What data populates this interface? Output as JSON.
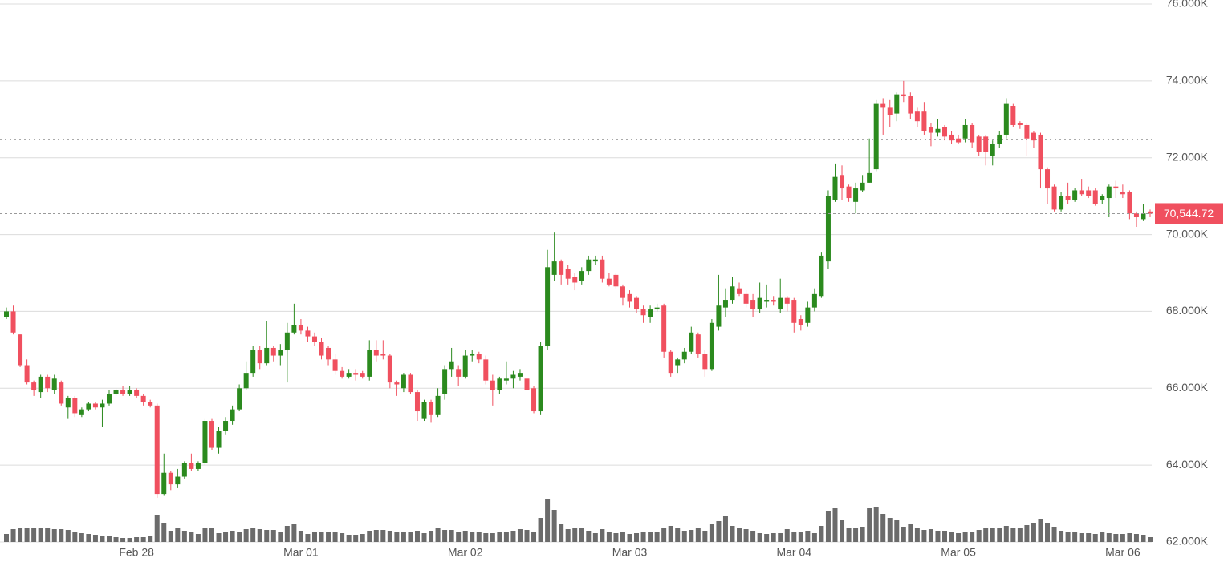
{
  "chart_data": {
    "type": "candlestick",
    "categories": [
      null,
      null,
      null,
      null,
      null,
      null,
      null,
      null,
      null,
      null,
      null,
      null,
      null,
      null,
      null,
      null,
      null,
      null,
      null,
      "Feb 28",
      null,
      null,
      null,
      null,
      null,
      null,
      null,
      null,
      null,
      null,
      null,
      null,
      null,
      null,
      null,
      null,
      null,
      null,
      null,
      null,
      null,
      null,
      null,
      "Mar 01",
      null,
      null,
      null,
      null,
      null,
      null,
      null,
      null,
      null,
      null,
      null,
      null,
      null,
      null,
      null,
      null,
      null,
      null,
      null,
      null,
      null,
      null,
      null,
      "Mar 02",
      null,
      null,
      null,
      null,
      null,
      null,
      null,
      null,
      null,
      null,
      null,
      null,
      null,
      null,
      null,
      null,
      null,
      null,
      null,
      null,
      null,
      null,
      null,
      "Mar 03",
      null,
      null,
      null,
      null,
      null,
      null,
      null,
      null,
      null,
      null,
      null,
      null,
      null,
      null,
      null,
      null,
      null,
      null,
      null,
      null,
      null,
      null,
      null,
      "Mar 04",
      null,
      null,
      null,
      null,
      null,
      null,
      null,
      null,
      null,
      null,
      null,
      null,
      null,
      null,
      null,
      null,
      null,
      null,
      null,
      null,
      null,
      null,
      null,
      "Mar 05",
      null,
      null,
      null,
      null,
      null,
      null,
      null,
      null,
      null,
      null,
      null,
      null,
      null,
      null,
      null,
      null,
      null,
      null,
      null,
      null,
      null,
      null,
      null,
      "Mar 06",
      null,
      null,
      null,
      null
    ],
    "open": [
      67850,
      68000,
      67400,
      66600,
      66150,
      65900,
      66300,
      65950,
      66150,
      65500,
      65750,
      65300,
      65450,
      65600,
      65500,
      65600,
      65850,
      65950,
      65850,
      65950,
      65800,
      65650,
      65550,
      63250,
      63800,
      63500,
      63700,
      64050,
      63900,
      64050,
      65150,
      64450,
      64900,
      65150,
      65450,
      66000,
      66400,
      67000,
      66650,
      67050,
      66850,
      67000,
      67450,
      67650,
      67500,
      67350,
      67200,
      67050,
      66750,
      66450,
      66300,
      66400,
      66400,
      66300,
      67000,
      66900,
      66850,
      66150,
      66000,
      66350,
      65900,
      65200,
      65650,
      65300,
      65850,
      66500,
      66500,
      66300,
      66850,
      66900,
      66750,
      66200,
      65950,
      66200,
      66250,
      66300,
      66250,
      66000,
      65400,
      67100,
      68950,
      69300,
      69100,
      68900,
      68800,
      69050,
      69300,
      69350,
      68850,
      68950,
      68650,
      68450,
      68350,
      68050,
      67850,
      68050,
      68150,
      66950,
      66600,
      66750,
      66950,
      67400,
      66900,
      66500,
      67600,
      68100,
      68300,
      68600,
      68450,
      68300,
      68050,
      68250,
      68300,
      68050,
      68350,
      68300,
      67800,
      67700,
      68100,
      68400,
      69300,
      70900,
      71550,
      71250,
      70850,
      71150,
      71350,
      71700,
      73400,
      73300,
      73150,
      73650,
      73600,
      73200,
      73200,
      72800,
      72650,
      72800,
      72600,
      72500,
      72500,
      72850,
      72550,
      72550,
      72050,
      72350,
      72600,
      73350,
      72900,
      72850,
      72650,
      72600,
      71700,
      71250,
      70650,
      71000,
      70900,
      71150,
      71150,
      71150,
      70900,
      70950,
      71250,
      71100,
      71100,
      70550,
      70400,
      70600
    ],
    "high": [
      68100,
      68150,
      67400,
      66750,
      66200,
      66350,
      66350,
      66350,
      66200,
      65800,
      65800,
      65500,
      65650,
      65650,
      65700,
      65950,
      66000,
      66050,
      66050,
      66000,
      65850,
      65700,
      65600,
      64300,
      63850,
      63900,
      64100,
      64300,
      64100,
      65200,
      65200,
      65000,
      65250,
      65550,
      66100,
      66700,
      67100,
      67100,
      67750,
      67100,
      67150,
      67700,
      68200,
      67800,
      67600,
      67450,
      67300,
      67100,
      66900,
      66550,
      66500,
      66500,
      66450,
      67250,
      67250,
      67250,
      66900,
      66200,
      66400,
      66400,
      65950,
      65700,
      65700,
      66000,
      66600,
      67050,
      66600,
      67000,
      67000,
      66950,
      66850,
      66350,
      66300,
      66700,
      66450,
      66500,
      66300,
      66050,
      67200,
      69600,
      70050,
      69350,
      69200,
      69000,
      69150,
      69450,
      69450,
      69450,
      69000,
      69000,
      68700,
      68550,
      68400,
      68150,
      68150,
      68200,
      68200,
      67000,
      66800,
      67050,
      67600,
      67450,
      67000,
      67800,
      68950,
      68600,
      68900,
      68750,
      68550,
      68450,
      68750,
      68700,
      68400,
      68850,
      68400,
      68350,
      67900,
      68250,
      68600,
      69550,
      71150,
      71850,
      71800,
      71300,
      71350,
      71550,
      72500,
      73500,
      73550,
      73500,
      73700,
      74000,
      73700,
      73300,
      73450,
      72900,
      73000,
      72850,
      72700,
      72600,
      73000,
      72900,
      72600,
      72600,
      72450,
      72700,
      73550,
      73400,
      72950,
      72900,
      72700,
      72650,
      71750,
      71300,
      71100,
      71350,
      71200,
      71450,
      71250,
      71200,
      71050,
      71300,
      71400,
      71300,
      71150,
      70600,
      70800,
      70650
    ],
    "low": [
      67800,
      67400,
      66550,
      66100,
      65800,
      65750,
      65900,
      65850,
      65550,
      65200,
      65250,
      65250,
      65400,
      65450,
      65000,
      65550,
      65800,
      65800,
      65800,
      65750,
      65550,
      65500,
      63150,
      63200,
      63350,
      63400,
      63650,
      63850,
      63850,
      64000,
      64400,
      64300,
      64800,
      65050,
      65400,
      65950,
      66300,
      66500,
      66600,
      66700,
      66600,
      66150,
      67400,
      67400,
      67200,
      67100,
      66750,
      66600,
      66350,
      66250,
      66250,
      66200,
      66250,
      66200,
      66700,
      66750,
      66000,
      65800,
      65900,
      65850,
      65150,
      65150,
      65100,
      65250,
      65700,
      66300,
      66050,
      66250,
      66700,
      66650,
      66100,
      65550,
      65850,
      66100,
      66000,
      66200,
      65900,
      65350,
      65300,
      67000,
      68800,
      68700,
      68700,
      68550,
      68700,
      68950,
      69200,
      68750,
      68650,
      68600,
      68150,
      68100,
      67950,
      67700,
      67700,
      68000,
      66800,
      66300,
      66400,
      66650,
      66900,
      66800,
      66300,
      66450,
      67500,
      67850,
      68200,
      68400,
      68100,
      67850,
      67950,
      68100,
      68150,
      67950,
      68000,
      67450,
      67500,
      67600,
      68000,
      68350,
      69100,
      70850,
      70900,
      70850,
      70550,
      71100,
      71350,
      71650,
      72600,
      72800,
      72950,
      73450,
      73000,
      72800,
      72600,
      72300,
      72550,
      72450,
      72350,
      72350,
      72400,
      72250,
      72050,
      71800,
      71800,
      72250,
      72500,
      72800,
      72750,
      72050,
      72250,
      71200,
      70800,
      70600,
      70600,
      70800,
      70850,
      71000,
      70950,
      70750,
      70800,
      70450,
      70950,
      70950,
      70400,
      70200,
      70350,
      70450
    ],
    "close": [
      68000,
      67450,
      66600,
      66150,
      65950,
      66300,
      66000,
      66250,
      65600,
      65750,
      65350,
      65450,
      65600,
      65500,
      65600,
      65850,
      65950,
      65850,
      65950,
      65800,
      65650,
      65550,
      63250,
      63800,
      63500,
      63700,
      64050,
      63900,
      64050,
      65150,
      64450,
      64900,
      65150,
      65450,
      66000,
      66400,
      67000,
      66650,
      67050,
      66850,
      67000,
      67450,
      67650,
      67500,
      67350,
      67200,
      66850,
      66750,
      66450,
      66300,
      66400,
      66350,
      66300,
      67000,
      66850,
      66850,
      66150,
      66100,
      66350,
      65900,
      65400,
      65650,
      65300,
      65800,
      66500,
      66700,
      66300,
      66850,
      66900,
      66750,
      66200,
      65950,
      66250,
      66250,
      66350,
      66400,
      65950,
      65400,
      67100,
      69150,
      69300,
      68950,
      68850,
      68750,
      69050,
      69350,
      69350,
      68850,
      68700,
      68650,
      68350,
      68250,
      68050,
      67900,
      68050,
      68100,
      66950,
      66400,
      66750,
      66950,
      67450,
      66900,
      66500,
      67700,
      68150,
      68300,
      68650,
      68450,
      68200,
      68050,
      68350,
      68300,
      68250,
      68350,
      68200,
      67700,
      67650,
      68100,
      68450,
      69450,
      71000,
      71500,
      71200,
      70950,
      71200,
      71350,
      71600,
      73400,
      73300,
      73100,
      73650,
      73600,
      73150,
      72950,
      72700,
      72650,
      72750,
      72550,
      72450,
      72400,
      72850,
      72400,
      72150,
      72150,
      72350,
      72600,
      73400,
      72850,
      72850,
      72500,
      72450,
      71700,
      71200,
      70650,
      71000,
      70900,
      71150,
      71050,
      71000,
      70800,
      71000,
      71250,
      71200,
      71050,
      70550,
      70450,
      70550,
      70544.72
    ],
    "volume": [
      10,
      16,
      17,
      17,
      17,
      17,
      17,
      16,
      16,
      15,
      12,
      11,
      10,
      9,
      8,
      7,
      6,
      5,
      5,
      6,
      6,
      7,
      33,
      24,
      14,
      17,
      14,
      12,
      10,
      18,
      18,
      11,
      12,
      14,
      12,
      16,
      17,
      16,
      15,
      15,
      12,
      20,
      22,
      14,
      10,
      12,
      13,
      12,
      13,
      11,
      9,
      9,
      10,
      14,
      15,
      15,
      14,
      13,
      13,
      13,
      14,
      11,
      14,
      18,
      15,
      15,
      13,
      14,
      12,
      13,
      11,
      11,
      12,
      12,
      14,
      16,
      15,
      12,
      30,
      53,
      40,
      22,
      16,
      17,
      17,
      14,
      11,
      16,
      13,
      11,
      12,
      10,
      11,
      12,
      12,
      13,
      18,
      20,
      18,
      14,
      15,
      17,
      14,
      23,
      26,
      32,
      20,
      17,
      16,
      14,
      11,
      10,
      11,
      11,
      16,
      12,
      12,
      14,
      11,
      20,
      38,
      42,
      28,
      18,
      18,
      19,
      42,
      43,
      35,
      30,
      28,
      19,
      22,
      17,
      15,
      16,
      14,
      14,
      12,
      11,
      12,
      13,
      15,
      17,
      17,
      18,
      20,
      17,
      18,
      21,
      24,
      29,
      24,
      19,
      14,
      13,
      12,
      11,
      11,
      10,
      13,
      11,
      10,
      10,
      11,
      10,
      9,
      6
    ],
    "up_color": "#2b8a1e",
    "down_color": "#f0505f",
    "volume_color": "#6b6b6b",
    "ylim": [
      62000,
      76000
    ],
    "yticks": [
      {
        "value": 62000,
        "label": "62.000K"
      },
      {
        "value": 64000,
        "label": "64.000K"
      },
      {
        "value": 66000,
        "label": "66.000K"
      },
      {
        "value": 68000,
        "label": "68.000K"
      },
      {
        "value": 70000,
        "label": "70.000K"
      },
      {
        "value": 72000,
        "label": "72.000K"
      },
      {
        "value": 74000,
        "label": "74.000K"
      },
      {
        "value": 76000,
        "label": "76.000K"
      }
    ],
    "grid": true,
    "reference_line": 72475,
    "last_price": {
      "value": 70544.72,
      "label": "70,544.72"
    }
  }
}
